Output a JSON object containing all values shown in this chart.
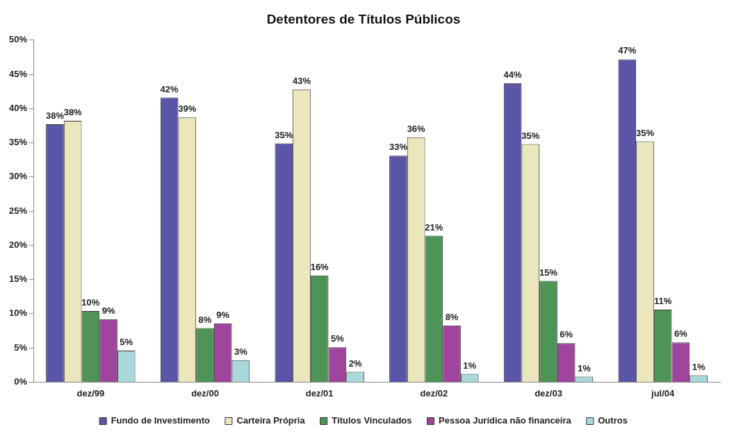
{
  "chart_data": {
    "type": "bar",
    "title": "Detentores de Títulos Públicos",
    "categories": [
      "dez/99",
      "dez/00",
      "dez/01",
      "dez/02",
      "dez/03",
      "jul/04"
    ],
    "series": [
      {
        "name": "Fundo de Investimento",
        "color": "#5a55a6",
        "values": [
          37.7,
          41.6,
          34.9,
          33.1,
          43.7,
          47.2
        ],
        "value_labels": [
          "38%",
          "42%",
          "35%",
          "33%",
          "44%",
          "47%"
        ]
      },
      {
        "name": "Carteira Própria",
        "color": "#ece6bd",
        "values": [
          38.2,
          38.7,
          42.8,
          35.8,
          34.8,
          35.2
        ],
        "value_labels": [
          "38%",
          "39%",
          "43%",
          "36%",
          "35%",
          "35%"
        ]
      },
      {
        "name": "Títulos Vinculados",
        "color": "#4f9457",
        "values": [
          10.4,
          7.9,
          15.6,
          21.4,
          14.8,
          10.6
        ],
        "value_labels": [
          "10%",
          "8%",
          "16%",
          "21%",
          "15%",
          "11%"
        ]
      },
      {
        "name": "Pessoa Jurídica não financeira",
        "color": "#a0459e",
        "values": [
          9.2,
          8.6,
          5.1,
          8.3,
          5.7,
          5.8
        ],
        "value_labels": [
          "9%",
          "9%",
          "5%",
          "8%",
          "6%",
          "6%"
        ]
      },
      {
        "name": "Outros",
        "color": "#a8d8dc",
        "values": [
          4.6,
          3.2,
          1.5,
          1.2,
          0.8,
          1.0
        ],
        "value_labels": [
          "5%",
          "3%",
          "2%",
          "1%",
          "1%",
          "1%"
        ]
      }
    ],
    "ylim": [
      0,
      50
    ],
    "yticks": [
      {
        "value": 0,
        "label": "0%"
      },
      {
        "value": 5,
        "label": "5%"
      },
      {
        "value": 10,
        "label": "10%"
      },
      {
        "value": 15,
        "label": "15%"
      },
      {
        "value": 20,
        "label": "20%"
      },
      {
        "value": 25,
        "label": "25%"
      },
      {
        "value": 30,
        "label": "30%"
      },
      {
        "value": 35,
        "label": "35%"
      },
      {
        "value": 40,
        "label": "40%"
      },
      {
        "value": 45,
        "label": "45%"
      },
      {
        "value": 50,
        "label": "50%"
      }
    ],
    "grid": false,
    "legend": "bottom"
  }
}
